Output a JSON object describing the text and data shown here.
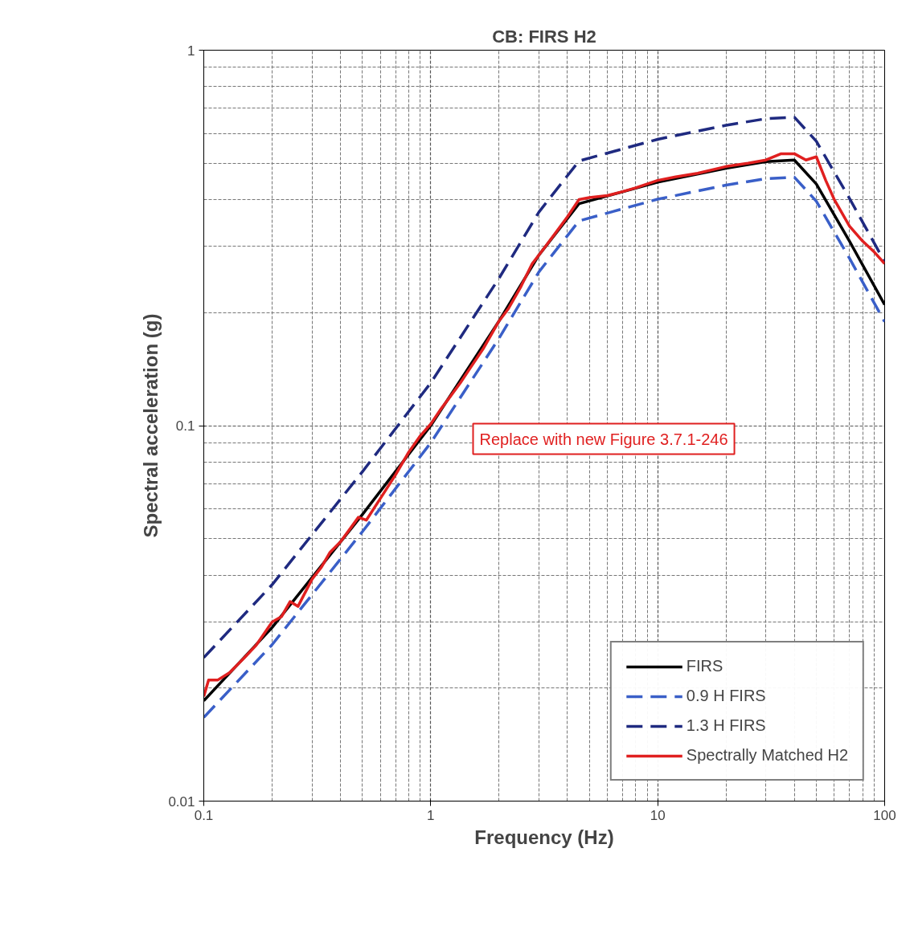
{
  "chart_data": {
    "type": "line",
    "title": "CB: FIRS H2",
    "xlabel": "Frequency (Hz)",
    "ylabel": "Spectral acceleration (g)",
    "log": "xy",
    "grid": true,
    "legend": "bottom right",
    "xlim": [
      0.1,
      100
    ],
    "ylim": [
      0.01,
      1
    ],
    "xticks": [
      0.1,
      1,
      10,
      100
    ],
    "yticks": [
      0.01,
      0.1,
      1
    ],
    "annotations": [
      "Replace with new Figure 3.7.1-246"
    ],
    "series": [
      {
        "name": "FIRS",
        "color": "#000000",
        "line_style": "solid",
        "x": [
          0.1,
          0.2,
          0.5,
          1,
          2,
          3,
          4.5,
          10,
          20,
          30,
          40,
          50,
          70,
          100
        ],
        "values": [
          0.0185,
          0.029,
          0.058,
          0.1,
          0.19,
          0.285,
          0.39,
          0.445,
          0.485,
          0.505,
          0.51,
          0.44,
          0.31,
          0.21
        ]
      },
      {
        "name": "0.9 H FIRS",
        "color": "#3a5fc8",
        "line_style": "dashed",
        "x": [
          0.1,
          0.2,
          0.5,
          1,
          2,
          3,
          4.5,
          10,
          20,
          30,
          40,
          50,
          70,
          100
        ],
        "values": [
          0.0167,
          0.0261,
          0.0522,
          0.09,
          0.171,
          0.257,
          0.351,
          0.401,
          0.437,
          0.455,
          0.459,
          0.396,
          0.279,
          0.189
        ]
      },
      {
        "name": "1.3 H FIRS",
        "color": "#1f2a80",
        "line_style": "dashed",
        "x": [
          0.1,
          0.2,
          0.5,
          1,
          2,
          3,
          4.5,
          10,
          20,
          30,
          40,
          50,
          70,
          100
        ],
        "values": [
          0.0241,
          0.0377,
          0.0754,
          0.13,
          0.247,
          0.371,
          0.507,
          0.579,
          0.631,
          0.657,
          0.663,
          0.572,
          0.403,
          0.273
        ]
      },
      {
        "name": "Spectrally Matched H2",
        "color": "#e02020",
        "line_style": "solid",
        "x": [
          0.1,
          0.105,
          0.115,
          0.13,
          0.15,
          0.17,
          0.2,
          0.22,
          0.24,
          0.26,
          0.3,
          0.33,
          0.36,
          0.4,
          0.44,
          0.48,
          0.52,
          0.6,
          0.7,
          0.8,
          0.9,
          1,
          1.1,
          1.2,
          1.35,
          1.5,
          1.7,
          2,
          2.2,
          2.5,
          2.8,
          3.2,
          3.6,
          4,
          4.5,
          5,
          6,
          7,
          8,
          10,
          12,
          15,
          20,
          25,
          30,
          35,
          40,
          45,
          50,
          55,
          60,
          70,
          80,
          90,
          100
        ],
        "values": [
          0.019,
          0.021,
          0.021,
          0.022,
          0.024,
          0.026,
          0.03,
          0.031,
          0.034,
          0.033,
          0.039,
          0.042,
          0.046,
          0.049,
          0.053,
          0.057,
          0.056,
          0.064,
          0.074,
          0.085,
          0.094,
          0.101,
          0.11,
          0.118,
          0.13,
          0.143,
          0.16,
          0.19,
          0.205,
          0.235,
          0.27,
          0.3,
          0.33,
          0.36,
          0.4,
          0.405,
          0.41,
          0.42,
          0.43,
          0.45,
          0.46,
          0.47,
          0.49,
          0.5,
          0.51,
          0.53,
          0.53,
          0.51,
          0.52,
          0.45,
          0.4,
          0.34,
          0.31,
          0.29,
          0.27
        ]
      }
    ]
  }
}
